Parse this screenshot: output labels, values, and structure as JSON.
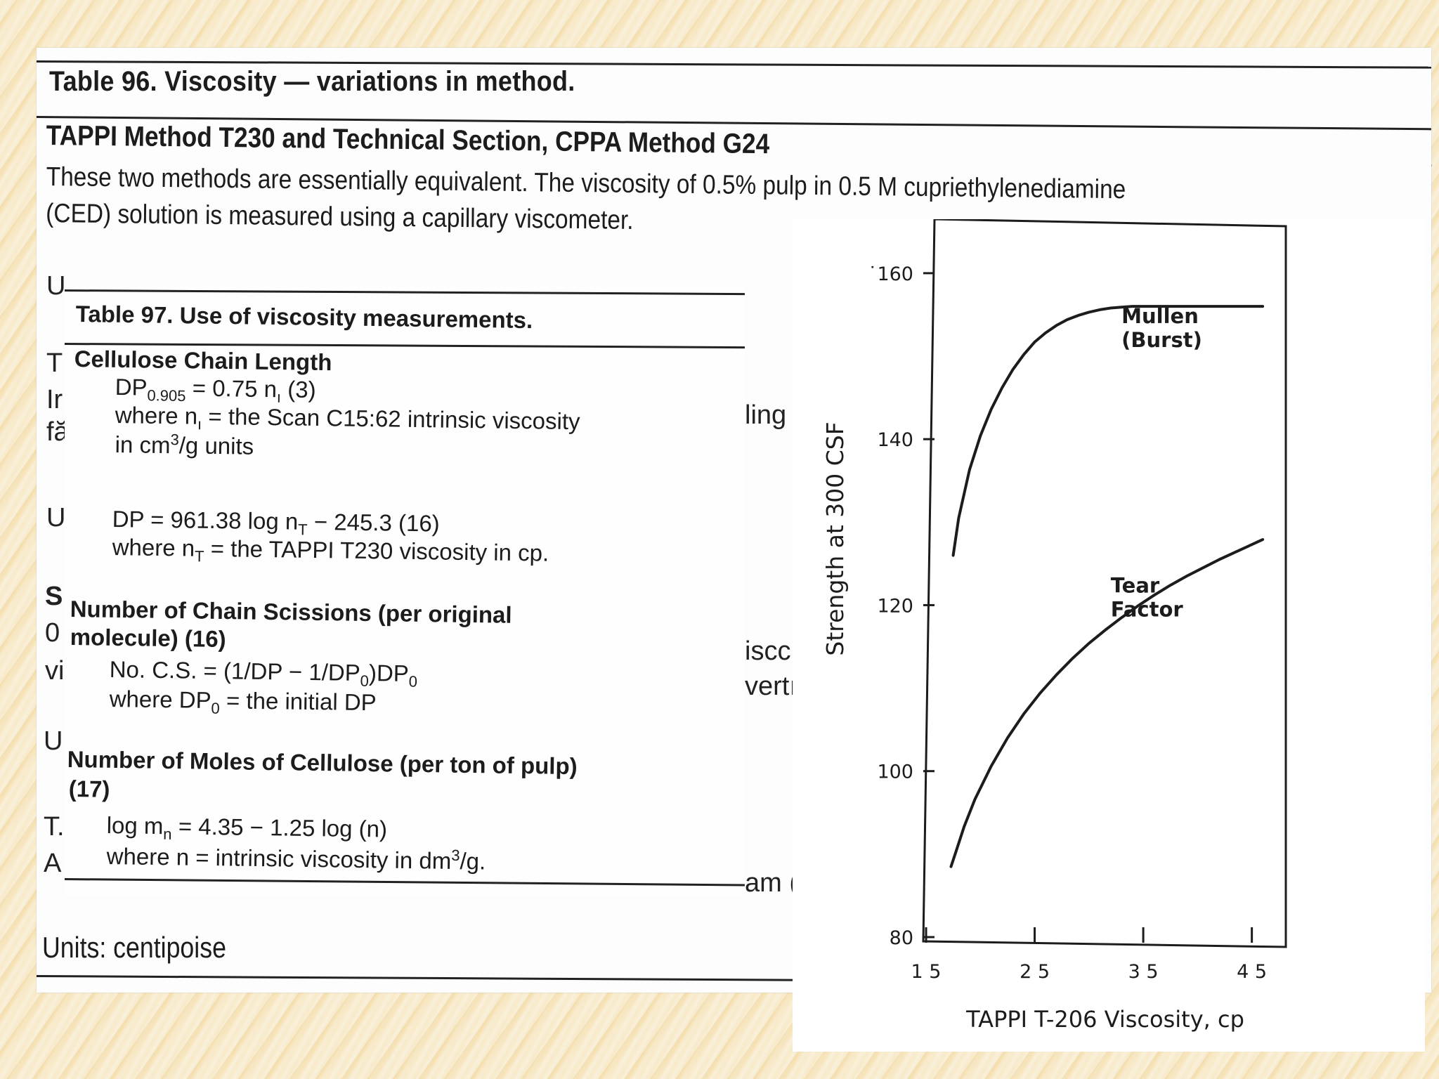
{
  "table96": {
    "title": "Table 96. Viscosity — variations in method.",
    "subtitle": "TAPPI Method T230 and Technical Section, CPPA Method G24",
    "description_lines": [
      "These two methods are essentially equivalent. The viscosity of 0.5% pulp in 0.5 M cupriethylenediamine",
      "(CED) solution is measured using a capillary viscometer."
    ],
    "partial_fragments": [
      "U",
      "T",
      "Ir",
      "fă",
      "U",
      "S",
      "0",
      "vi",
      "U",
      "T.",
      "A",
      "ling",
      "iscc",
      "vertı",
      "am ("
    ],
    "units_bottom": "Units: centipoise"
  },
  "table97": {
    "title": "Table 97. Use of viscosity measurements.",
    "sections": [
      {
        "heading": "Cellulose Chain Length",
        "lines": [
          "DP0.905 = 0.75 nı (3)",
          "where nı = the Scan C15:62 intrinsic viscosity",
          "in cm3/g units",
          "DP = 961.38 log nT − 245.3 (16)",
          "where nT = the TAPPI T230 viscosity in cp."
        ]
      },
      {
        "heading": "Number of Chain Scissions (per original",
        "heading2": "molecule) (16)",
        "lines": [
          "No. C.S. = (1/DP − 1/DP0)DP0",
          "where DP0 = the initial DP"
        ]
      },
      {
        "heading": "Number of Moles of Cellulose (per ton of pulp)",
        "heading2": "(17)",
        "lines": [
          "log mn = 4.35 − 1.25 log (n)",
          "where n = intrinsic viscosity in dm3/g."
        ]
      }
    ]
  },
  "chart_data": {
    "type": "line",
    "xlabel": "TAPPI T-206 Viscosity, cp",
    "ylabel": "Strength at 300 CSF",
    "xlim": [
      15,
      48
    ],
    "ylim": [
      80,
      166
    ],
    "x_ticks": [
      15,
      25,
      35,
      45
    ],
    "x_tick_labels": [
      "1 5",
      "2 5",
      "3 5",
      "4 5"
    ],
    "y_ticks": [
      80,
      100,
      120,
      140,
      160
    ],
    "y_tick_labels": [
      "80",
      "100",
      "120",
      "140",
      "˙160"
    ],
    "grid": false,
    "series": [
      {
        "name": "Mullen (Burst)",
        "label_lines": [
          "Mullen",
          "(Burst)"
        ],
        "x": [
          17.5,
          18,
          19,
          20,
          21,
          22,
          23,
          24,
          25,
          26,
          27,
          28,
          29,
          30,
          31,
          32,
          33,
          34,
          35,
          36,
          38,
          40,
          42,
          44,
          46
        ],
        "y": [
          126,
          130.5,
          136.3,
          140.4,
          143.6,
          146.2,
          148.4,
          150.2,
          151.7,
          152.8,
          153.7,
          154.4,
          154.9,
          155.3,
          155.6,
          155.8,
          155.9,
          156,
          156,
          156,
          156,
          156,
          156,
          156,
          156
        ]
      },
      {
        "name": "Tear Factor",
        "label_lines": [
          "Tear",
          "Factor"
        ],
        "x": [
          17.3,
          17.8,
          18.5,
          19.5,
          21,
          22.5,
          24,
          25.5,
          27,
          28.5,
          30,
          31.5,
          33,
          34.5,
          36,
          37.5,
          39,
          40.5,
          42,
          43.5,
          45,
          46
        ],
        "y": [
          88.5,
          90.5,
          93.3,
          96.6,
          100.6,
          104,
          106.9,
          109.4,
          111.6,
          113.6,
          115.4,
          117,
          118.5,
          119.9,
          121.2,
          122.4,
          123.5,
          124.5,
          125.5,
          126.4,
          127.3,
          127.9
        ]
      }
    ]
  }
}
